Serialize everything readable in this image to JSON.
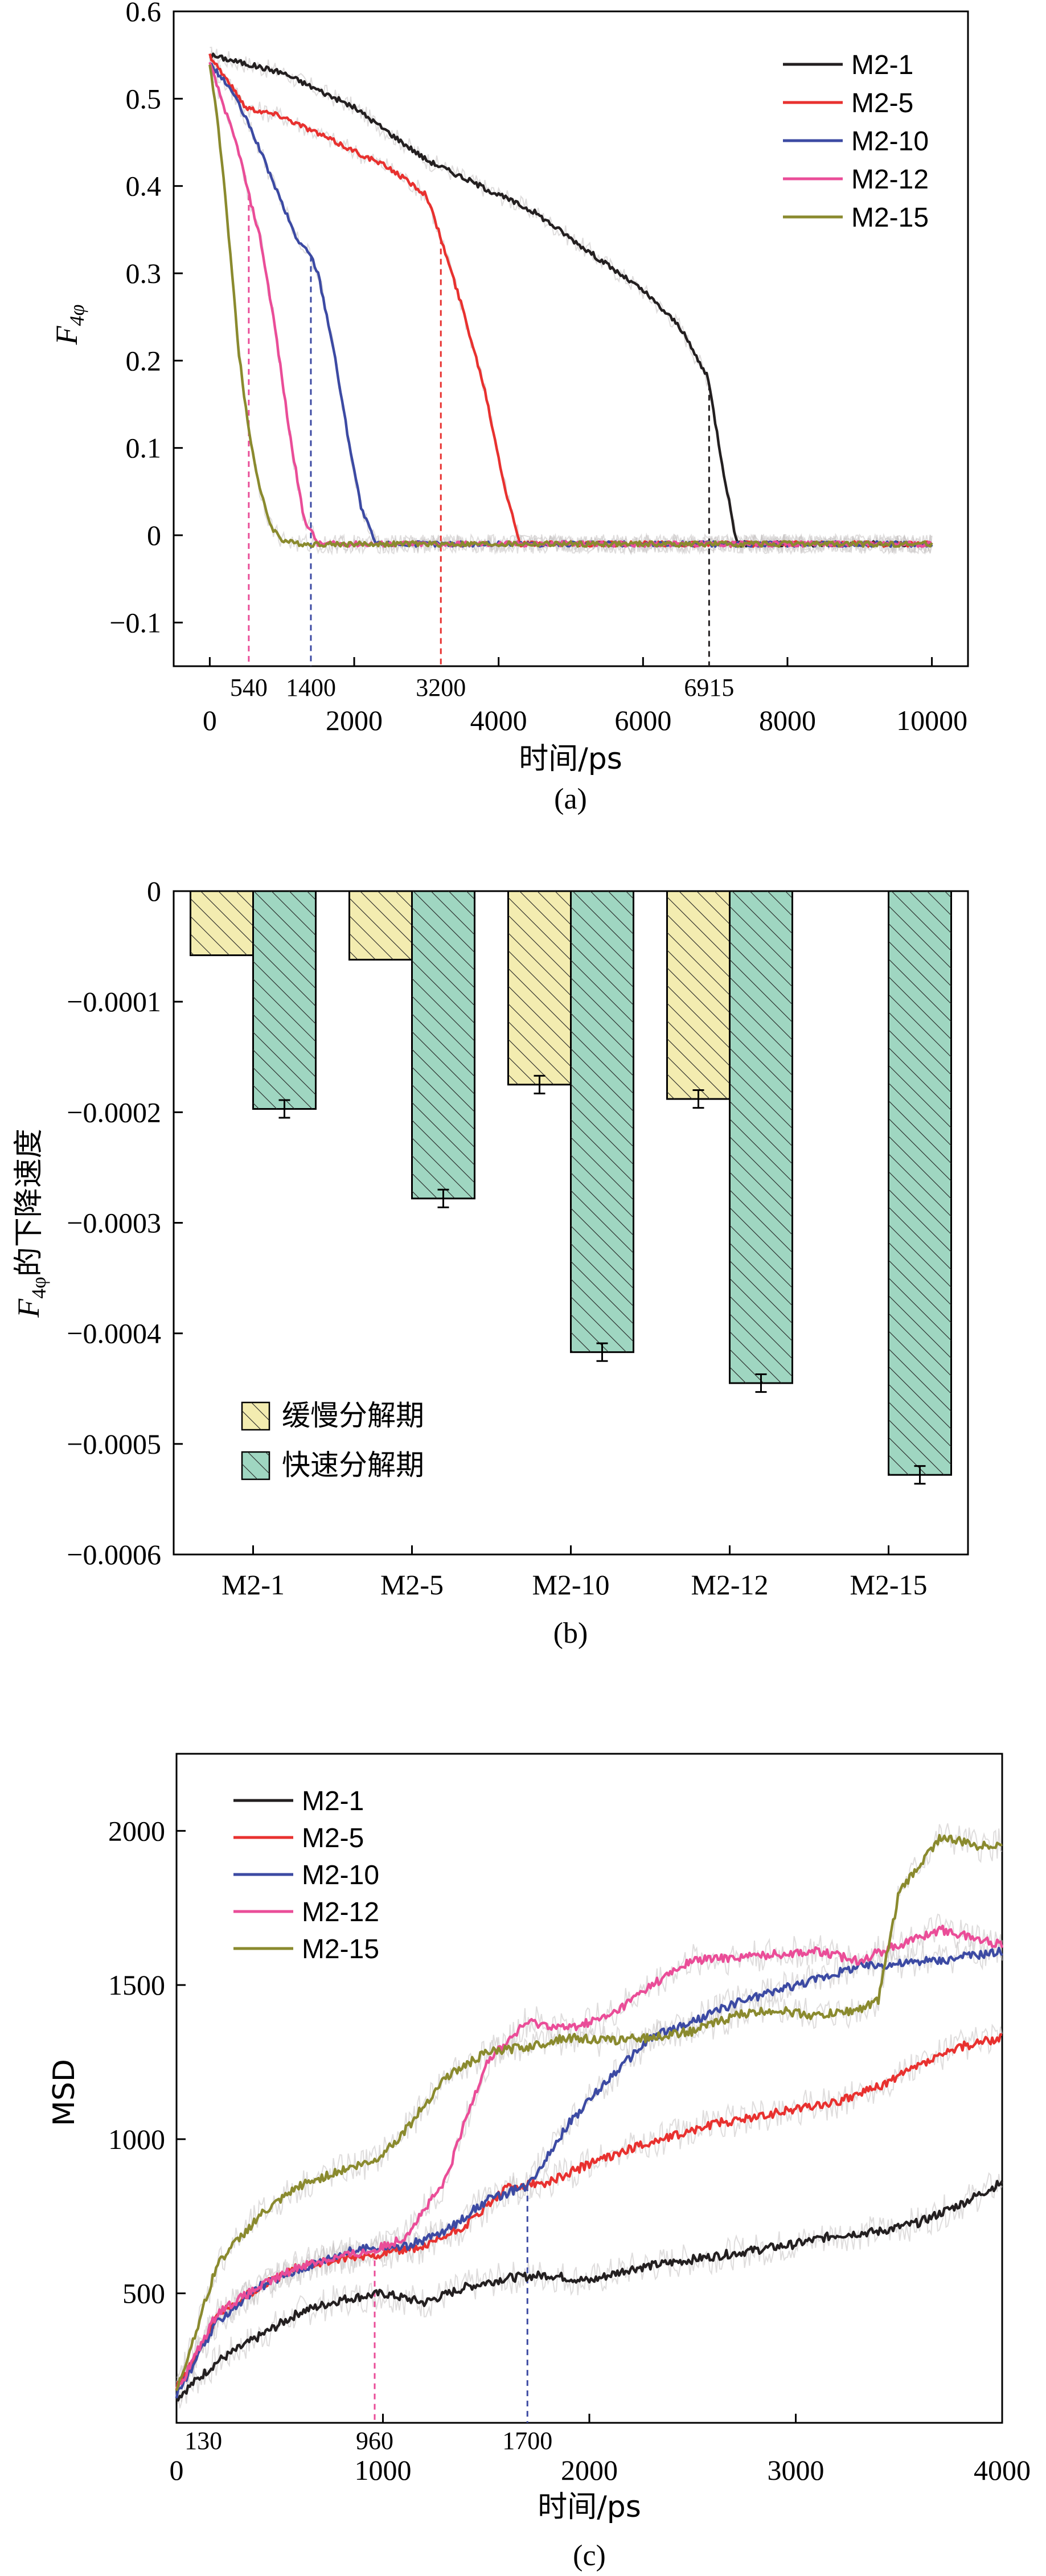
{
  "colors": {
    "M2-1": "#231f20",
    "M2-5": "#e8312f",
    "M2-10": "#3c4aa3",
    "M2-12": "#ea4d98",
    "M2-15": "#8a8a2e",
    "slow_fill": "#f3ecb0",
    "fast_fill": "#9fd6c1",
    "raw_trace": "#c9c6c6"
  },
  "chart_data": [
    {
      "type": "line",
      "panel_label": "(a)",
      "xlabel": "时间/ps",
      "ylabel_main": "F",
      "ylabel_sub": "4φ",
      "xlim": [
        -500,
        10500
      ],
      "ylim": [
        -0.15,
        0.6
      ],
      "xticks": [
        "0",
        "2000",
        "4000",
        "6000",
        "8000",
        "10000"
      ],
      "xtick_values": [
        0,
        2000,
        4000,
        6000,
        8000,
        10000
      ],
      "yticks": [
        "0.6",
        "0.5",
        "0.4",
        "0.3",
        "0.2",
        "0.1",
        "0",
        "−0.1"
      ],
      "ytick_values": [
        0.6,
        0.5,
        0.4,
        0.3,
        0.2,
        0.1,
        0,
        -0.1
      ],
      "legend_position": "top-right",
      "annotations": [
        {
          "text": "540",
          "x": 540,
          "series": "M2-12"
        },
        {
          "text": "1400",
          "x": 1400,
          "series": "M2-10"
        },
        {
          "text": "3200",
          "x": 3200,
          "series": "M2-5"
        },
        {
          "text": "6915",
          "x": 6915,
          "series": "M2-1"
        }
      ],
      "series": [
        {
          "name": "M2-1",
          "x": [
            0,
            500,
            1000,
            1500,
            2000,
            2500,
            3000,
            3500,
            4000,
            4500,
            5000,
            5500,
            6000,
            6500,
            6900,
            7100,
            7300,
            8000,
            10000
          ],
          "y": [
            0.55,
            0.54,
            0.53,
            0.51,
            0.49,
            0.46,
            0.43,
            0.41,
            0.39,
            0.37,
            0.34,
            0.31,
            0.28,
            0.24,
            0.18,
            0.08,
            -0.01,
            -0.01,
            -0.01
          ]
        },
        {
          "name": "M2-5",
          "x": [
            0,
            500,
            1000,
            1500,
            2000,
            2500,
            3000,
            3200,
            3500,
            3800,
            4100,
            4300,
            5000,
            10000
          ],
          "y": [
            0.55,
            0.49,
            0.48,
            0.46,
            0.44,
            0.42,
            0.39,
            0.34,
            0.26,
            0.17,
            0.05,
            -0.01,
            -0.01,
            -0.01
          ]
        },
        {
          "name": "M2-10",
          "x": [
            0,
            300,
            600,
            900,
            1200,
            1400,
            1500,
            1700,
            1900,
            2100,
            2300,
            3000,
            10000
          ],
          "y": [
            0.54,
            0.51,
            0.46,
            0.4,
            0.34,
            0.32,
            0.3,
            0.22,
            0.12,
            0.03,
            -0.01,
            -0.01,
            -0.01
          ]
        },
        {
          "name": "M2-12",
          "x": [
            0,
            200,
            400,
            540,
            700,
            900,
            1100,
            1300,
            1500,
            2000,
            10000
          ],
          "y": [
            0.54,
            0.49,
            0.44,
            0.39,
            0.34,
            0.24,
            0.12,
            0.02,
            -0.01,
            -0.01,
            -0.01
          ]
        },
        {
          "name": "M2-15",
          "x": [
            0,
            100,
            200,
            300,
            400,
            540,
            700,
            850,
            1000,
            1200,
            10000
          ],
          "y": [
            0.54,
            0.48,
            0.4,
            0.31,
            0.21,
            0.12,
            0.05,
            0.01,
            -0.005,
            -0.01,
            -0.01
          ]
        }
      ]
    },
    {
      "type": "bar",
      "panel_label": "(b)",
      "ylabel_main": "F",
      "ylabel_sub": "4φ",
      "ylabel_rest": "的下降速度",
      "categories": [
        "M2-1",
        "M2-5",
        "M2-10",
        "M2-12",
        "M2-15"
      ],
      "ylim": [
        -0.0006,
        0
      ],
      "yticks": [
        "0",
        "−0.0001",
        "−0.0002",
        "−0.0003",
        "−0.0004",
        "−0.0005",
        "−0.0006"
      ],
      "ytick_values": [
        0,
        -0.0001,
        -0.0002,
        -0.0003,
        -0.0004,
        -0.0005,
        -0.0006
      ],
      "legend_position": "bottom-left",
      "series": [
        {
          "name": "缓慢分解期",
          "values": [
            -5.8e-05,
            -6.2e-05,
            -0.000175,
            -0.000188,
            null
          ],
          "errors": [
            0,
            0,
            8e-06,
            8e-06,
            0
          ]
        },
        {
          "name": "快速分解期",
          "values": [
            -0.000197,
            -0.000278,
            -0.000417,
            -0.000445,
            -0.000528
          ],
          "errors": [
            8e-06,
            8e-06,
            8e-06,
            8e-06,
            8e-06
          ]
        }
      ]
    },
    {
      "type": "line",
      "panel_label": "(c)",
      "xlabel": "时间/ps",
      "ylabel": "MSD",
      "xlim": [
        0,
        4000
      ],
      "ylim": [
        80,
        2250
      ],
      "xticks": [
        "0",
        "1000",
        "2000",
        "3000",
        "4000"
      ],
      "xtick_values": [
        0,
        1000,
        2000,
        3000,
        4000
      ],
      "yticks": [
        "2000",
        "1500",
        "1000",
        "500"
      ],
      "ytick_values": [
        2000,
        1500,
        1000,
        500
      ],
      "legend_position": "top-left",
      "annotations": [
        {
          "text": "130",
          "x": 130
        },
        {
          "text": "960",
          "x": 960,
          "series": "M2-12"
        },
        {
          "text": "1700",
          "x": 1700,
          "series": "M2-10"
        }
      ],
      "series": [
        {
          "name": "M2-1",
          "x": [
            0,
            200,
            400,
            600,
            800,
            1000,
            1200,
            1400,
            1600,
            1800,
            2000,
            2200,
            2400,
            2600,
            2800,
            3000,
            3200,
            3400,
            3600,
            3800,
            4000
          ],
          "y": [
            160,
            280,
            360,
            440,
            480,
            500,
            470,
            520,
            550,
            560,
            540,
            580,
            600,
            620,
            640,
            660,
            690,
            700,
            730,
            790,
            860
          ]
        },
        {
          "name": "M2-5",
          "x": [
            0,
            200,
            400,
            600,
            800,
            1000,
            1200,
            1400,
            1600,
            1800,
            2000,
            2200,
            2400,
            2600,
            2800,
            3000,
            3200,
            3400,
            3600,
            3800,
            4000
          ],
          "y": [
            190,
            430,
            520,
            590,
            610,
            630,
            650,
            720,
            840,
            860,
            920,
            970,
            1010,
            1050,
            1070,
            1100,
            1120,
            1170,
            1240,
            1300,
            1330
          ]
        },
        {
          "name": "M2-10",
          "x": [
            0,
            200,
            400,
            600,
            800,
            960,
            1100,
            1300,
            1500,
            1700,
            1900,
            2100,
            2300,
            2500,
            2700,
            2900,
            3100,
            3300,
            3500,
            3700,
            3900,
            4000
          ],
          "y": [
            170,
            410,
            520,
            580,
            630,
            650,
            650,
            700,
            800,
            850,
            1050,
            1200,
            1330,
            1380,
            1440,
            1480,
            1520,
            1560,
            1570,
            1580,
            1600,
            1610
          ]
        },
        {
          "name": "M2-12",
          "x": [
            0,
            200,
            400,
            600,
            800,
            960,
            1100,
            1300,
            1400,
            1500,
            1700,
            1900,
            2100,
            2300,
            2500,
            2700,
            2900,
            3100,
            3300,
            3500,
            3700,
            4000
          ],
          "y": [
            180,
            440,
            520,
            590,
            620,
            640,
            680,
            860,
            1060,
            1250,
            1380,
            1360,
            1400,
            1500,
            1580,
            1590,
            1600,
            1610,
            1580,
            1630,
            1680,
            1630
          ]
        },
        {
          "name": "M2-15",
          "x": [
            0,
            200,
            400,
            600,
            800,
            960,
            1100,
            1300,
            1500,
            1700,
            1900,
            2100,
            2300,
            2500,
            2700,
            2900,
            3100,
            3300,
            3400,
            3500,
            3700,
            3900,
            4000
          ],
          "y": [
            180,
            600,
            750,
            850,
            900,
            930,
            1020,
            1200,
            1280,
            1300,
            1330,
            1320,
            1330,
            1350,
            1400,
            1420,
            1400,
            1420,
            1450,
            1800,
            1980,
            1950,
            1960
          ]
        }
      ]
    }
  ]
}
